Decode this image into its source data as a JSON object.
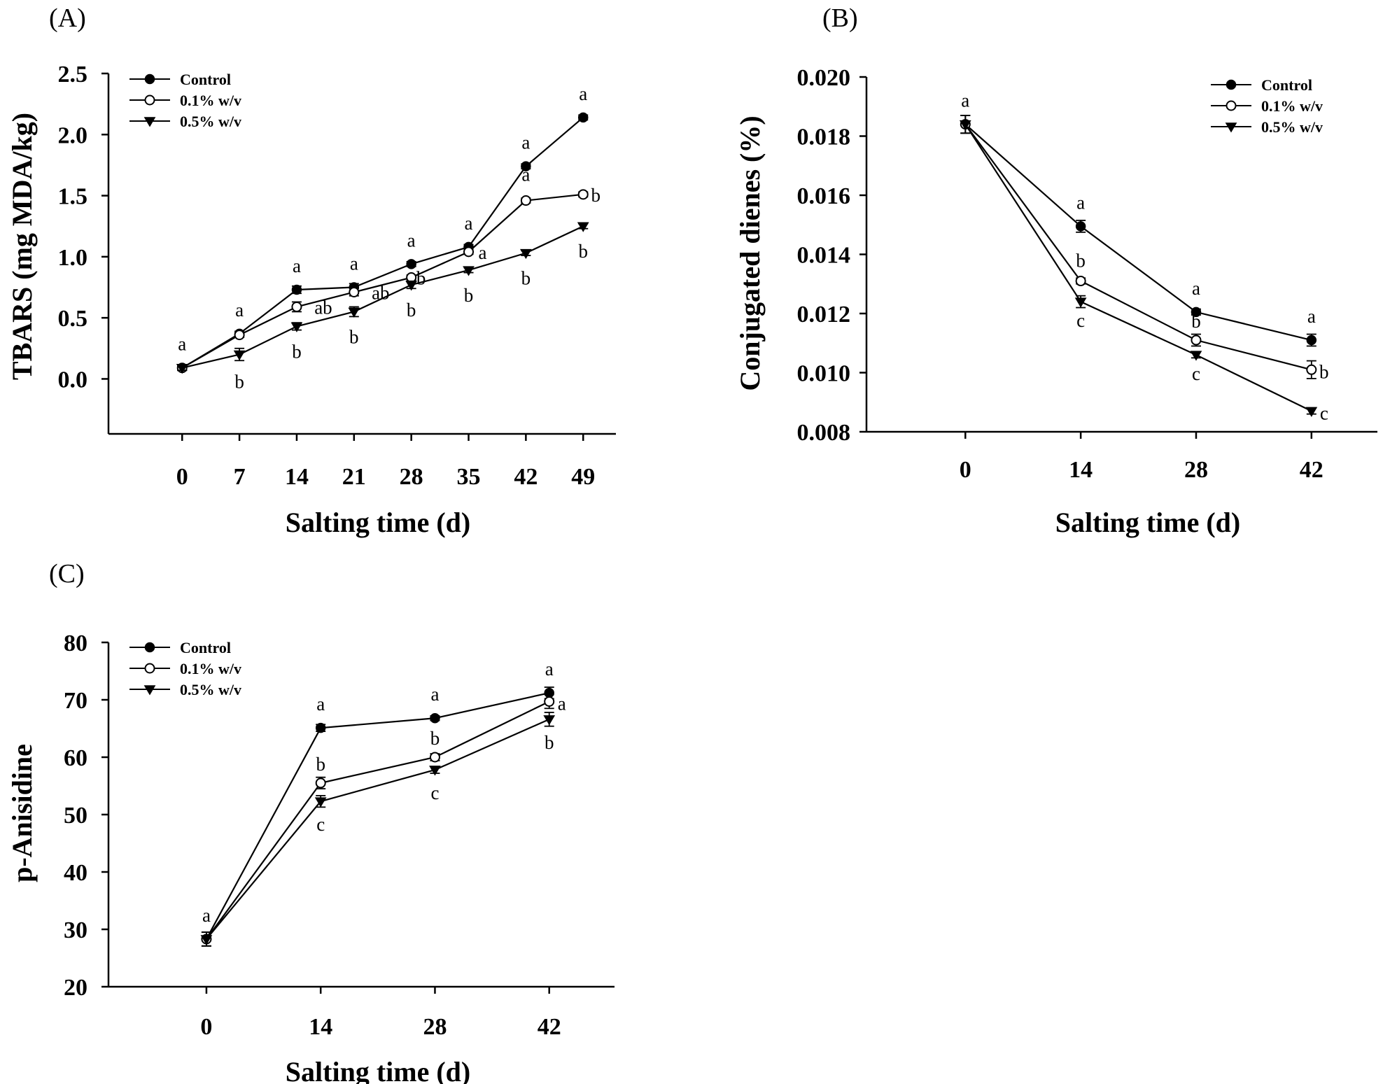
{
  "chart_data": [
    {
      "panel": "(A)",
      "type": "line",
      "xlabel": "Salting time (d)",
      "ylabel": "TBARS (mg MDA/kg)",
      "x": [
        0,
        7,
        14,
        21,
        28,
        35,
        42,
        49
      ],
      "x_tick_labels": [
        "0",
        "7",
        "14",
        "21",
        "28",
        "35",
        "42",
        "49"
      ],
      "xlim": [
        -9,
        53
      ],
      "ylim": [
        -0.45,
        2.5
      ],
      "y_ticks": [
        0.0,
        0.5,
        1.0,
        1.5,
        2.0,
        2.5
      ],
      "y_tick_labels": [
        "0.0",
        "0.5",
        "1.0",
        "1.5",
        "2.0",
        "2.5"
      ],
      "grid": false,
      "legend_position": "top-left",
      "series": [
        {
          "name": "Control",
          "marker": "filled-circle",
          "values": [
            0.09,
            0.37,
            0.73,
            0.75,
            0.94,
            1.08,
            1.74,
            2.14
          ],
          "errors": [
            0.02,
            0.02,
            0.03,
            0.03,
            0.02,
            0.02,
            0.02,
            0.02
          ],
          "letters": [
            "a",
            "a",
            "a",
            "a",
            "a",
            "a",
            "a",
            "a"
          ]
        },
        {
          "name": "0.1% w/v",
          "marker": "open-circle",
          "values": [
            0.09,
            0.36,
            0.59,
            0.71,
            0.83,
            1.04,
            1.46,
            1.51
          ],
          "errors": [
            0.02,
            0.02,
            0.04,
            0.03,
            0.02,
            0.02,
            0.02,
            0.02
          ],
          "letters": [
            "",
            "",
            "ab",
            "ab",
            "b",
            "a",
            "a",
            "b"
          ]
        },
        {
          "name": "0.5% w/v",
          "marker": "filled-triangle-down",
          "values": [
            0.09,
            0.2,
            0.43,
            0.55,
            0.77,
            0.89,
            1.03,
            1.25
          ],
          "errors": [
            0.02,
            0.05,
            0.03,
            0.04,
            0.03,
            0.02,
            0.02,
            0.02
          ],
          "letters": [
            "",
            "b",
            "b",
            "b",
            "b",
            "b",
            "b",
            "b"
          ]
        }
      ]
    },
    {
      "panel": "(B)",
      "type": "line",
      "xlabel": "Salting time (d)",
      "ylabel": "Conjugated dienes (%)",
      "x": [
        0,
        14,
        28,
        42
      ],
      "x_tick_labels": [
        "0",
        "14",
        "28",
        "42"
      ],
      "xlim": [
        -12,
        50
      ],
      "ylim": [
        0.008,
        0.02
      ],
      "y_ticks": [
        0.008,
        0.01,
        0.012,
        0.014,
        0.016,
        0.018,
        0.02
      ],
      "y_tick_labels": [
        "0.008",
        "0.010",
        "0.012",
        "0.014",
        "0.016",
        "0.018",
        "0.020"
      ],
      "grid": false,
      "legend_position": "top-right",
      "series": [
        {
          "name": "Control",
          "marker": "filled-circle",
          "values": [
            0.0184,
            0.01495,
            0.01205,
            0.0111
          ],
          "errors": [
            0.0003,
            0.0002,
            0.0001,
            0.0002
          ],
          "letters": [
            "a",
            "a",
            "a",
            "a"
          ]
        },
        {
          "name": "0.1% w/v",
          "marker": "open-circle",
          "values": [
            0.0184,
            0.0131,
            0.0111,
            0.0101
          ],
          "errors": [
            0.0003,
            0.0001,
            0.0002,
            0.0003
          ],
          "letters": [
            "",
            "b",
            "b",
            "b"
          ]
        },
        {
          "name": "0.5% w/v",
          "marker": "filled-triangle-down",
          "values": [
            0.0184,
            0.0124,
            0.0106,
            0.0087
          ],
          "errors": [
            0.0003,
            0.0002,
            0.0001,
            0.0001
          ],
          "letters": [
            "",
            "c",
            "c",
            "c"
          ]
        }
      ]
    },
    {
      "panel": "(C)",
      "type": "line",
      "xlabel": "Salting time (d)",
      "ylabel": "p-Anisidine",
      "x": [
        0,
        14,
        28,
        42
      ],
      "x_tick_labels": [
        "0",
        "14",
        "28",
        "42"
      ],
      "xlim": [
        -12,
        50
      ],
      "ylim": [
        20,
        80
      ],
      "y_ticks": [
        20,
        30,
        40,
        50,
        60,
        70,
        80
      ],
      "y_tick_labels": [
        "20",
        "30",
        "40",
        "50",
        "60",
        "70",
        "80"
      ],
      "grid": false,
      "legend_position": "top-left",
      "series": [
        {
          "name": "Control",
          "marker": "filled-circle",
          "values": [
            28.3,
            65.1,
            66.8,
            71.2
          ],
          "errors": [
            1.2,
            0.6,
            0.4,
            1.0
          ],
          "letters": [
            "a",
            "a",
            "a",
            "a"
          ]
        },
        {
          "name": "0.1% w/v",
          "marker": "open-circle",
          "values": [
            28.3,
            55.5,
            60.0,
            69.7
          ],
          "errors": [
            1.2,
            1.0,
            0.6,
            1.2
          ],
          "letters": [
            "",
            "b",
            "b",
            "a"
          ]
        },
        {
          "name": "0.5% w/v",
          "marker": "filled-triangle-down",
          "values": [
            28.3,
            52.3,
            57.8,
            66.6
          ],
          "errors": [
            1.2,
            1.0,
            0.6,
            1.2
          ],
          "letters": [
            "",
            "c",
            "c",
            "b"
          ]
        }
      ]
    }
  ]
}
